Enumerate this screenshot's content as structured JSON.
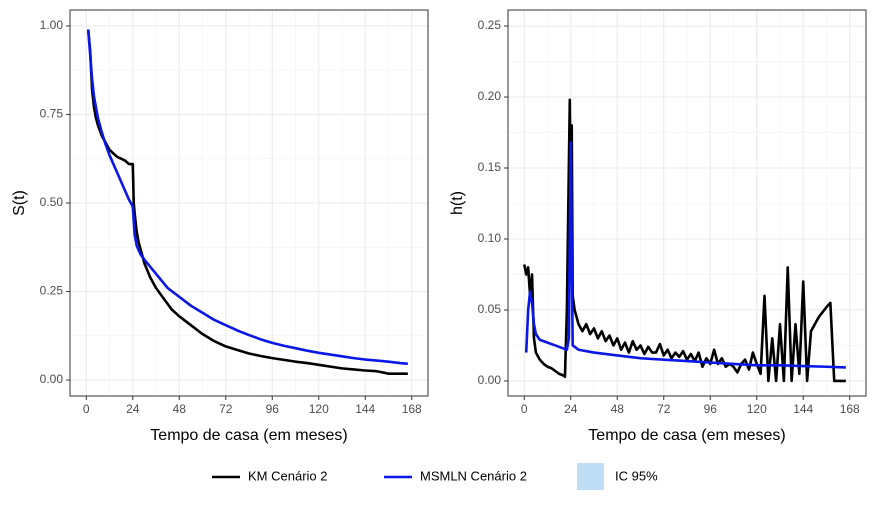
{
  "chart_data": [
    {
      "type": "line",
      "xlabel": "Tempo de casa (em meses)",
      "ylabel": "S(t)",
      "xlim": [
        -8.4,
        176.4
      ],
      "xticks": [
        0,
        24,
        48,
        72,
        96,
        120,
        144,
        168
      ],
      "ylim": [
        -0.045,
        1.045
      ],
      "yticks": [
        {
          "value": 0,
          "label": "0.00"
        },
        {
          "value": 0.25,
          "label": "0.25"
        },
        {
          "value": 0.5,
          "label": "0.50"
        },
        {
          "value": 0.75,
          "label": "0.75"
        },
        {
          "value": 1,
          "label": "1.00"
        }
      ],
      "grid": true,
      "band": {
        "name": "IC 95%",
        "color": "#bfdef5"
      },
      "series": [
        {
          "name": "KM Cenário 2",
          "color": "#000000",
          "x": [
            1,
            2,
            3,
            4,
            5,
            6,
            8,
            10,
            12,
            14,
            16,
            18,
            20,
            22,
            24,
            24.5,
            25,
            26,
            27,
            28,
            30,
            33,
            36,
            40,
            44,
            48,
            54,
            60,
            66,
            72,
            78,
            84,
            90,
            96,
            102,
            108,
            114,
            120,
            126,
            132,
            138,
            144,
            150,
            156,
            162,
            166
          ],
          "values": [
            0.99,
            0.93,
            0.82,
            0.77,
            0.74,
            0.72,
            0.69,
            0.67,
            0.65,
            0.64,
            0.63,
            0.625,
            0.62,
            0.61,
            0.61,
            0.5,
            0.47,
            0.42,
            0.39,
            0.37,
            0.33,
            0.29,
            0.26,
            0.23,
            0.2,
            0.18,
            0.155,
            0.13,
            0.11,
            0.095,
            0.085,
            0.075,
            0.068,
            0.062,
            0.057,
            0.052,
            0.048,
            0.043,
            0.038,
            0.033,
            0.03,
            0.027,
            0.025,
            0.018,
            0.018,
            0.018
          ]
        },
        {
          "name": "MSMLN Cenário 2",
          "color": "#0a17e6",
          "x": [
            1,
            2,
            3,
            4,
            6,
            8,
            10,
            12,
            14,
            16,
            18,
            20,
            22,
            24,
            24.5,
            25,
            26,
            28,
            30,
            36,
            42,
            48,
            54,
            60,
            66,
            72,
            78,
            84,
            90,
            96,
            102,
            108,
            114,
            120,
            126,
            132,
            138,
            144,
            150,
            156,
            162,
            166
          ],
          "values": [
            0.99,
            0.92,
            0.85,
            0.8,
            0.74,
            0.7,
            0.665,
            0.635,
            0.61,
            0.585,
            0.56,
            0.535,
            0.51,
            0.49,
            0.45,
            0.41,
            0.38,
            0.355,
            0.34,
            0.3,
            0.26,
            0.235,
            0.21,
            0.19,
            0.17,
            0.155,
            0.14,
            0.127,
            0.115,
            0.105,
            0.097,
            0.09,
            0.083,
            0.077,
            0.072,
            0.067,
            0.062,
            0.058,
            0.055,
            0.052,
            0.048,
            0.046
          ]
        }
      ]
    },
    {
      "type": "line",
      "xlabel": "Tempo de casa (em meses)",
      "ylabel": "h(t)",
      "xlim": [
        -8.4,
        176.4
      ],
      "xticks": [
        0,
        24,
        48,
        72,
        96,
        120,
        144,
        168
      ],
      "ylim": [
        -0.0106,
        0.2613
      ],
      "yticks": [
        {
          "value": 0,
          "label": "0.00"
        },
        {
          "value": 0.05,
          "label": "0.05"
        },
        {
          "value": 0.1,
          "label": "0.10"
        },
        {
          "value": 0.15,
          "label": "0.15"
        },
        {
          "value": 0.2,
          "label": "0.20"
        },
        {
          "value": 0.25,
          "label": "0.25"
        }
      ],
      "grid": true,
      "series": [
        {
          "name": "KM Cenário 2",
          "color": "#000000",
          "x": [
            0,
            1,
            2,
            3,
            4,
            5,
            6,
            8,
            10,
            12,
            14,
            16,
            18,
            20,
            21,
            22,
            23,
            23.5,
            24,
            24.5,
            25,
            26,
            28,
            30,
            32,
            34,
            36,
            38,
            40,
            42,
            44,
            46,
            48,
            50,
            52,
            54,
            56,
            58,
            60,
            62,
            64,
            66,
            68,
            70,
            72,
            74,
            76,
            78,
            80,
            82,
            84,
            86,
            88,
            90,
            92,
            94,
            96,
            98,
            100,
            102,
            104,
            106,
            108,
            110,
            112,
            114,
            116,
            118,
            120,
            122,
            124,
            126,
            128,
            130,
            132,
            134,
            136,
            138,
            140,
            142,
            144,
            146,
            148,
            152,
            156,
            158,
            160,
            166
          ],
          "values": [
            0.082,
            0.075,
            0.08,
            0.06,
            0.075,
            0.03,
            0.02,
            0.015,
            0.012,
            0.01,
            0.009,
            0.007,
            0.005,
            0.004,
            0.003,
            0.05,
            0.15,
            0.198,
            0.12,
            0.18,
            0.06,
            0.05,
            0.04,
            0.035,
            0.04,
            0.033,
            0.037,
            0.03,
            0.035,
            0.028,
            0.032,
            0.025,
            0.03,
            0.022,
            0.027,
            0.02,
            0.028,
            0.022,
            0.025,
            0.019,
            0.024,
            0.02,
            0.02,
            0.026,
            0.018,
            0.022,
            0.016,
            0.02,
            0.017,
            0.021,
            0.015,
            0.019,
            0.014,
            0.02,
            0.01,
            0.016,
            0.012,
            0.022,
            0.012,
            0.016,
            0.01,
            0.012,
            0.01,
            0.006,
            0.012,
            0.015,
            0.008,
            0.02,
            0.012,
            0.005,
            0.06,
            0,
            0.03,
            0,
            0.04,
            0,
            0.08,
            0,
            0.04,
            0.005,
            0.07,
            0,
            0.035,
            0.045,
            0.052,
            0.055,
            0,
            0
          ]
        },
        {
          "name": "MSMLN Cenário 2",
          "color": "#0a17e6",
          "x": [
            1,
            2,
            3,
            4,
            5,
            6,
            8,
            12,
            16,
            20,
            22,
            23,
            23.5,
            24,
            24.5,
            25,
            28,
            36,
            48,
            60,
            72,
            84,
            96,
            108,
            120,
            132,
            144,
            156,
            166
          ],
          "values": [
            0.02,
            0.05,
            0.063,
            0.055,
            0.04,
            0.033,
            0.029,
            0.027,
            0.025,
            0.023,
            0.022,
            0.03,
            0.1,
            0.168,
            0.09,
            0.025,
            0.022,
            0.02,
            0.018,
            0.016,
            0.015,
            0.014,
            0.013,
            0.012,
            0.011,
            0.011,
            0.0105,
            0.01,
            0.0095
          ]
        }
      ]
    }
  ]
}
